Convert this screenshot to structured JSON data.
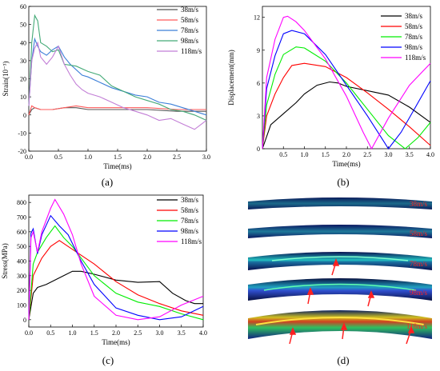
{
  "captions": [
    "(a)",
    "(b)",
    "(c)",
    "(d)"
  ],
  "chart_data": [
    {
      "type": "line",
      "panel": "a",
      "xlabel": "Time(ms)",
      "ylabel": "Strain(10⁻³)",
      "xlim": [
        0,
        3.0
      ],
      "ylim": [
        -20,
        60
      ],
      "xticks": [
        "0.0",
        "0.5",
        "1.0",
        "1.5",
        "2.0",
        "2.5",
        "3.0"
      ],
      "yticks": [
        "-20",
        "-10",
        "0",
        "10",
        "20",
        "30",
        "40",
        "50",
        "60"
      ],
      "legend_position": "top-right",
      "series": [
        {
          "name": "38m/s",
          "color": "#555555",
          "x": [
            0,
            0.05,
            0.1,
            0.2,
            0.4,
            0.6,
            0.8,
            1.0,
            1.5,
            2.0,
            2.5,
            3.0
          ],
          "y": [
            0,
            3,
            4,
            3,
            3,
            4,
            4,
            3,
            3,
            3,
            2,
            2
          ]
        },
        {
          "name": "58m/s",
          "color": "#ff5a5a",
          "x": [
            0,
            0.05,
            0.1,
            0.2,
            0.4,
            0.6,
            0.8,
            1.0,
            1.5,
            2.0,
            2.5,
            3.0
          ],
          "y": [
            0,
            5,
            4,
            3,
            3,
            4,
            5,
            4,
            4,
            4,
            3,
            3
          ]
        },
        {
          "name": "78m/s",
          "color": "#3c7fd8",
          "x": [
            0,
            0.05,
            0.1,
            0.15,
            0.2,
            0.3,
            0.4,
            0.5,
            0.6,
            0.7,
            0.8,
            0.9,
            1.0,
            1.2,
            1.4,
            1.6,
            1.8,
            2.0,
            2.2,
            2.4,
            2.6,
            2.8,
            3.0
          ],
          "y": [
            5,
            30,
            42,
            38,
            35,
            33,
            36,
            38,
            32,
            28,
            25,
            22,
            21,
            18,
            15,
            13,
            11,
            10,
            7,
            6,
            4,
            2,
            0
          ]
        },
        {
          "name": "98m/s",
          "color": "#44aa77",
          "x": [
            0,
            0.05,
            0.1,
            0.15,
            0.2,
            0.3,
            0.4,
            0.5,
            0.6,
            0.8,
            1.0,
            1.2,
            1.4,
            1.6,
            1.8,
            2.0,
            2.2,
            2.4,
            2.6,
            2.8,
            3.0
          ],
          "y": [
            5,
            40,
            55,
            52,
            40,
            38,
            35,
            36,
            28,
            27,
            24,
            22,
            16,
            13,
            10,
            8,
            6,
            3,
            2,
            0,
            -3
          ]
        },
        {
          "name": "118m/s",
          "color": "#c27ed6",
          "x": [
            0,
            0.05,
            0.1,
            0.15,
            0.2,
            0.3,
            0.4,
            0.5,
            0.6,
            0.7,
            0.8,
            0.9,
            1.0,
            1.2,
            1.4,
            1.6,
            1.8,
            2.0,
            2.2,
            2.4,
            2.6,
            2.8,
            3.0
          ],
          "y": [
            5,
            30,
            37,
            40,
            32,
            28,
            32,
            38,
            28,
            22,
            17,
            14,
            12,
            10,
            7,
            4,
            2,
            0,
            -3,
            -2,
            -5,
            -8,
            -3
          ]
        }
      ]
    },
    {
      "type": "line",
      "panel": "b",
      "xlabel": "Time(ms)",
      "ylabel": "Displacement(mm)",
      "xlim": [
        0,
        4.0
      ],
      "ylim": [
        0,
        13
      ],
      "xticks": [
        "0.5",
        "1.0",
        "1.5",
        "2.0",
        "2.5",
        "3.0",
        "3.5",
        "4.0"
      ],
      "yticks": [
        "0",
        "3",
        "6",
        "9",
        "12"
      ],
      "legend_position": "top-right",
      "series": [
        {
          "name": "38m/s",
          "color": "#000000",
          "x": [
            0,
            0.2,
            0.5,
            0.8,
            1.0,
            1.3,
            1.6,
            1.8,
            2.0,
            2.5,
            3.0,
            3.5,
            4.0
          ],
          "y": [
            0,
            2.2,
            3.2,
            4.2,
            5.0,
            5.8,
            6.1,
            6.0,
            5.7,
            5.3,
            4.9,
            3.8,
            2.4
          ]
        },
        {
          "name": "58m/s",
          "color": "#ff0000",
          "x": [
            0,
            0.1,
            0.3,
            0.5,
            0.7,
            1.0,
            1.5,
            2.0,
            2.5,
            3.0,
            3.5,
            4.0
          ],
          "y": [
            0,
            3.0,
            5.0,
            6.5,
            7.6,
            7.8,
            7.5,
            6.5,
            5.1,
            3.6,
            2.0,
            0.3
          ]
        },
        {
          "name": "78m/s",
          "color": "#00ee00",
          "x": [
            0,
            0.1,
            0.3,
            0.5,
            0.8,
            1.0,
            1.5,
            2.0,
            2.5,
            3.0,
            3.4,
            3.7,
            4.0
          ],
          "y": [
            0,
            4.0,
            6.8,
            8.6,
            9.3,
            9.2,
            8.0,
            6.0,
            3.6,
            1.2,
            0.0,
            1.0,
            2.4
          ]
        },
        {
          "name": "98m/s",
          "color": "#0000ff",
          "x": [
            0,
            0.1,
            0.3,
            0.5,
            0.7,
            1.0,
            1.5,
            2.0,
            2.5,
            2.9,
            3.0,
            3.3,
            3.6,
            4.0
          ],
          "y": [
            0,
            5.5,
            8.5,
            10.5,
            10.8,
            10.5,
            8.6,
            5.8,
            3.0,
            0.6,
            0.0,
            1.5,
            3.5,
            6.2
          ]
        },
        {
          "name": "118m/s",
          "color": "#ff00ff",
          "x": [
            0,
            0.1,
            0.3,
            0.5,
            0.6,
            0.8,
            1.0,
            1.5,
            2.0,
            2.4,
            2.6,
            3.0,
            3.5,
            4.0
          ],
          "y": [
            0,
            6.5,
            10.0,
            12.0,
            12.1,
            11.6,
            10.8,
            8.2,
            4.8,
            1.5,
            0.0,
            2.8,
            5.8,
            7.8
          ]
        }
      ]
    },
    {
      "type": "line",
      "panel": "c",
      "xlabel": "Time(ms)",
      "ylabel": "Stress(MPa)",
      "xlim": [
        0,
        4.0
      ],
      "ylim": [
        -50,
        850
      ],
      "xticks": [
        "0.0",
        "0.5",
        "1.0",
        "1.5",
        "2.0",
        "2.5",
        "3.0",
        "3.5",
        "4.0"
      ],
      "yticks": [
        "0",
        "100",
        "200",
        "300",
        "400",
        "500",
        "600",
        "700",
        "800"
      ],
      "legend_position": "top-right",
      "series": [
        {
          "name": "38m/s",
          "color": "#000000",
          "x": [
            0,
            0.1,
            0.2,
            0.4,
            0.6,
            0.8,
            1.0,
            1.2,
            1.5,
            2.0,
            2.5,
            3.0,
            3.3,
            3.6,
            3.8,
            4.0
          ],
          "y": [
            0,
            180,
            220,
            240,
            270,
            300,
            330,
            330,
            310,
            270,
            255,
            260,
            180,
            130,
            110,
            110
          ]
        },
        {
          "name": "58m/s",
          "color": "#ff0000",
          "x": [
            0,
            0.1,
            0.3,
            0.5,
            0.7,
            0.9,
            1.0,
            1.2,
            1.5,
            2.0,
            2.5,
            3.0,
            3.5,
            4.0
          ],
          "y": [
            0,
            300,
            420,
            500,
            540,
            500,
            480,
            440,
            380,
            260,
            170,
            110,
            60,
            30
          ]
        },
        {
          "name": "78m/s",
          "color": "#00ee00",
          "x": [
            0,
            0.1,
            0.2,
            0.4,
            0.6,
            0.8,
            1.0,
            1.2,
            1.5,
            2.0,
            2.5,
            3.0,
            3.5,
            4.0
          ],
          "y": [
            0,
            380,
            460,
            560,
            640,
            560,
            500,
            420,
            300,
            180,
            120,
            90,
            40,
            0
          ]
        },
        {
          "name": "98m/s",
          "color": "#0000ff",
          "x": [
            0,
            0.05,
            0.1,
            0.2,
            0.3,
            0.5,
            0.7,
            0.9,
            1.0,
            1.2,
            1.5,
            2.0,
            2.5,
            3.0,
            3.5,
            4.0
          ],
          "y": [
            0,
            590,
            620,
            450,
            580,
            710,
            640,
            580,
            520,
            400,
            240,
            80,
            30,
            0,
            20,
            90
          ]
        },
        {
          "name": "118m/s",
          "color": "#ff00ff",
          "x": [
            0,
            0.05,
            0.1,
            0.2,
            0.3,
            0.5,
            0.6,
            0.8,
            1.0,
            1.2,
            1.5,
            2.0,
            2.5,
            3.0,
            3.5,
            4.0
          ],
          "y": [
            0,
            560,
            600,
            460,
            600,
            760,
            820,
            720,
            580,
            380,
            160,
            30,
            0,
            20,
            100,
            160
          ]
        }
      ]
    }
  ],
  "simulation_panel": {
    "labels": [
      "38m/s",
      "58m/s",
      "78m/s",
      "98m/s",
      "118m/s"
    ]
  }
}
